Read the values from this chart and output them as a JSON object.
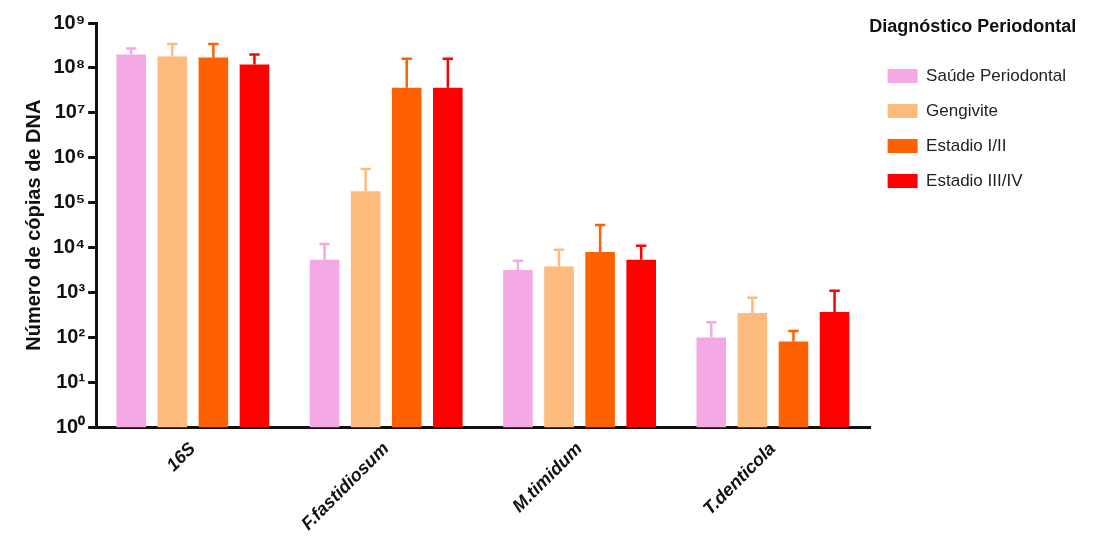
{
  "chart_data": {
    "type": "bar",
    "ylabel": "Número de cópias de DNA",
    "legend_title": "Diagnóstico Periodontal",
    "categories": [
      "16S",
      "F.fastidiosum",
      "M.timidum",
      "T.denticola"
    ],
    "series": [
      {
        "name": "Saúde Periodontal",
        "color": "#f4a9e4",
        "values": [
          200000000,
          5400,
          3200,
          100
        ],
        "errors": [
          [
            200000000,
            270000000
          ],
          [
            5400,
            12000
          ],
          [
            3200,
            5100
          ],
          [
            100,
            220
          ]
        ]
      },
      {
        "name": "Gengivite",
        "color": "#fdbb7d",
        "values": [
          180000000,
          180000,
          3800,
          350
        ],
        "errors": [
          [
            180000000,
            340000000
          ],
          [
            180000,
            560000
          ],
          [
            3800,
            9000
          ],
          [
            350,
            770
          ]
        ]
      },
      {
        "name": "Estadio I/II",
        "color": "#ff6000",
        "values": [
          170000000,
          36000000,
          8000,
          82
        ],
        "errors": [
          [
            170000000,
            340000000
          ],
          [
            36000000,
            160000000
          ],
          [
            8000,
            32000
          ],
          [
            82,
            140
          ]
        ]
      },
      {
        "name": "Estadio III/IV",
        "color": "#ff0000",
        "values": [
          120000000,
          36000000,
          5400,
          370
        ],
        "errors": [
          [
            120000000,
            200000000
          ],
          [
            36000000,
            160000000
          ],
          [
            5400,
            11000
          ],
          [
            370,
            1100
          ]
        ]
      }
    ],
    "log": true,
    "ylim": [
      1,
      1000000000
    ],
    "yticks": [
      {
        "value": 1,
        "label": "10⁰"
      },
      {
        "value": 10,
        "label": "10¹"
      },
      {
        "value": 100,
        "label": "10²"
      },
      {
        "value": 1000,
        "label": "10³"
      },
      {
        "value": 10000,
        "label": "10⁴"
      },
      {
        "value": 100000,
        "label": "10⁵"
      },
      {
        "value": 1000000,
        "label": "10⁶"
      },
      {
        "value": 10000000,
        "label": "10⁷"
      },
      {
        "value": 100000000,
        "label": "10⁸"
      },
      {
        "value": 1000000000,
        "label": "10⁹"
      }
    ],
    "grid": false,
    "legend": "right"
  }
}
